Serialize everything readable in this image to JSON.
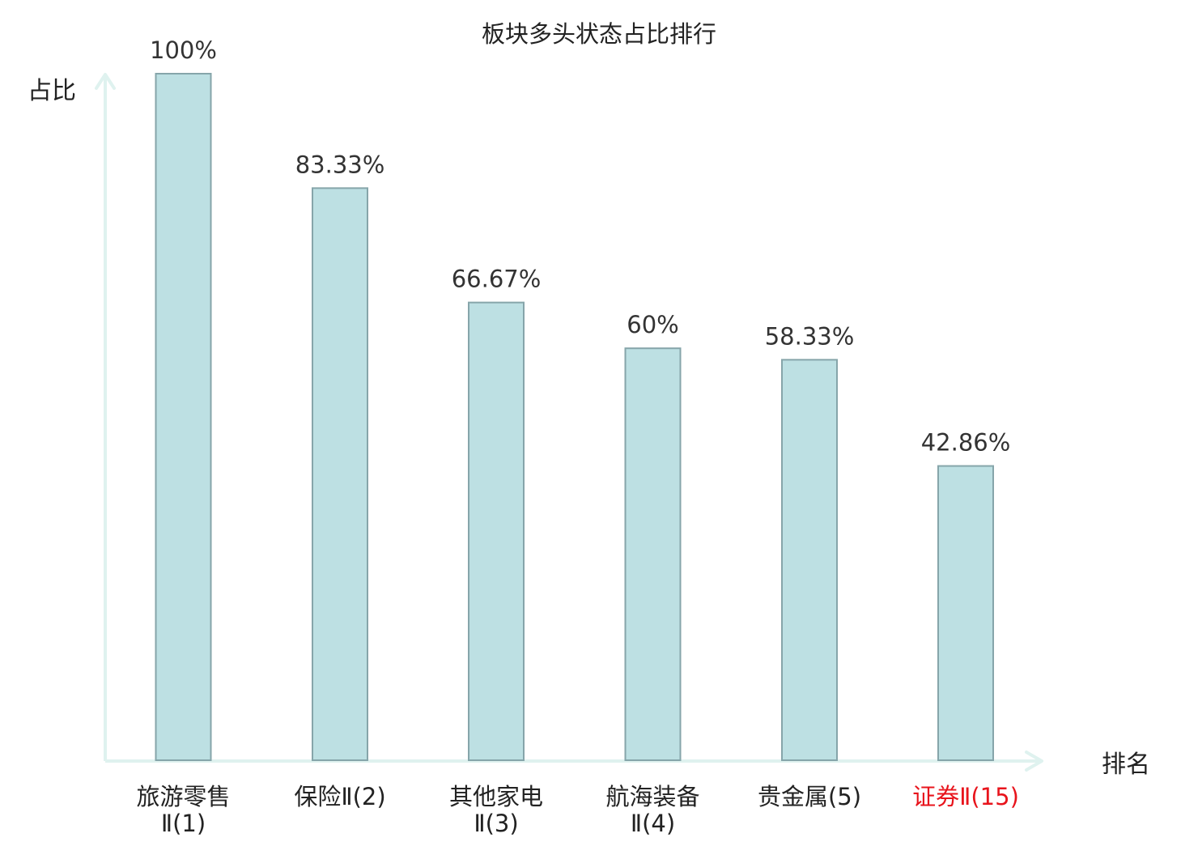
{
  "chart_data": {
    "type": "bar",
    "title": "板块多头状态占比排行",
    "xlabel": "排名",
    "ylabel": "占比",
    "ylim": [
      0,
      100
    ],
    "grid": false,
    "categories": [
      [
        "旅游零售",
        "Ⅱ(1)"
      ],
      [
        "保险Ⅱ(2)"
      ],
      [
        "其他家电",
        "Ⅱ(3)"
      ],
      [
        "航海装备",
        "Ⅱ(4)"
      ],
      [
        "贵金属(5)"
      ],
      [
        "证券Ⅱ(15)"
      ]
    ],
    "values": [
      100,
      83.33,
      66.67,
      60,
      58.33,
      42.86
    ],
    "value_labels": [
      "100%",
      "83.33%",
      "66.67%",
      "60%",
      "58.33%",
      "42.86%"
    ],
    "highlight_index": 5
  },
  "colors": {
    "bar_fill": "#bde0e3",
    "bar_stroke": "#86a5aa",
    "axis": "#dff2ef",
    "text": "#222222",
    "highlight_text": "#e8141c"
  }
}
